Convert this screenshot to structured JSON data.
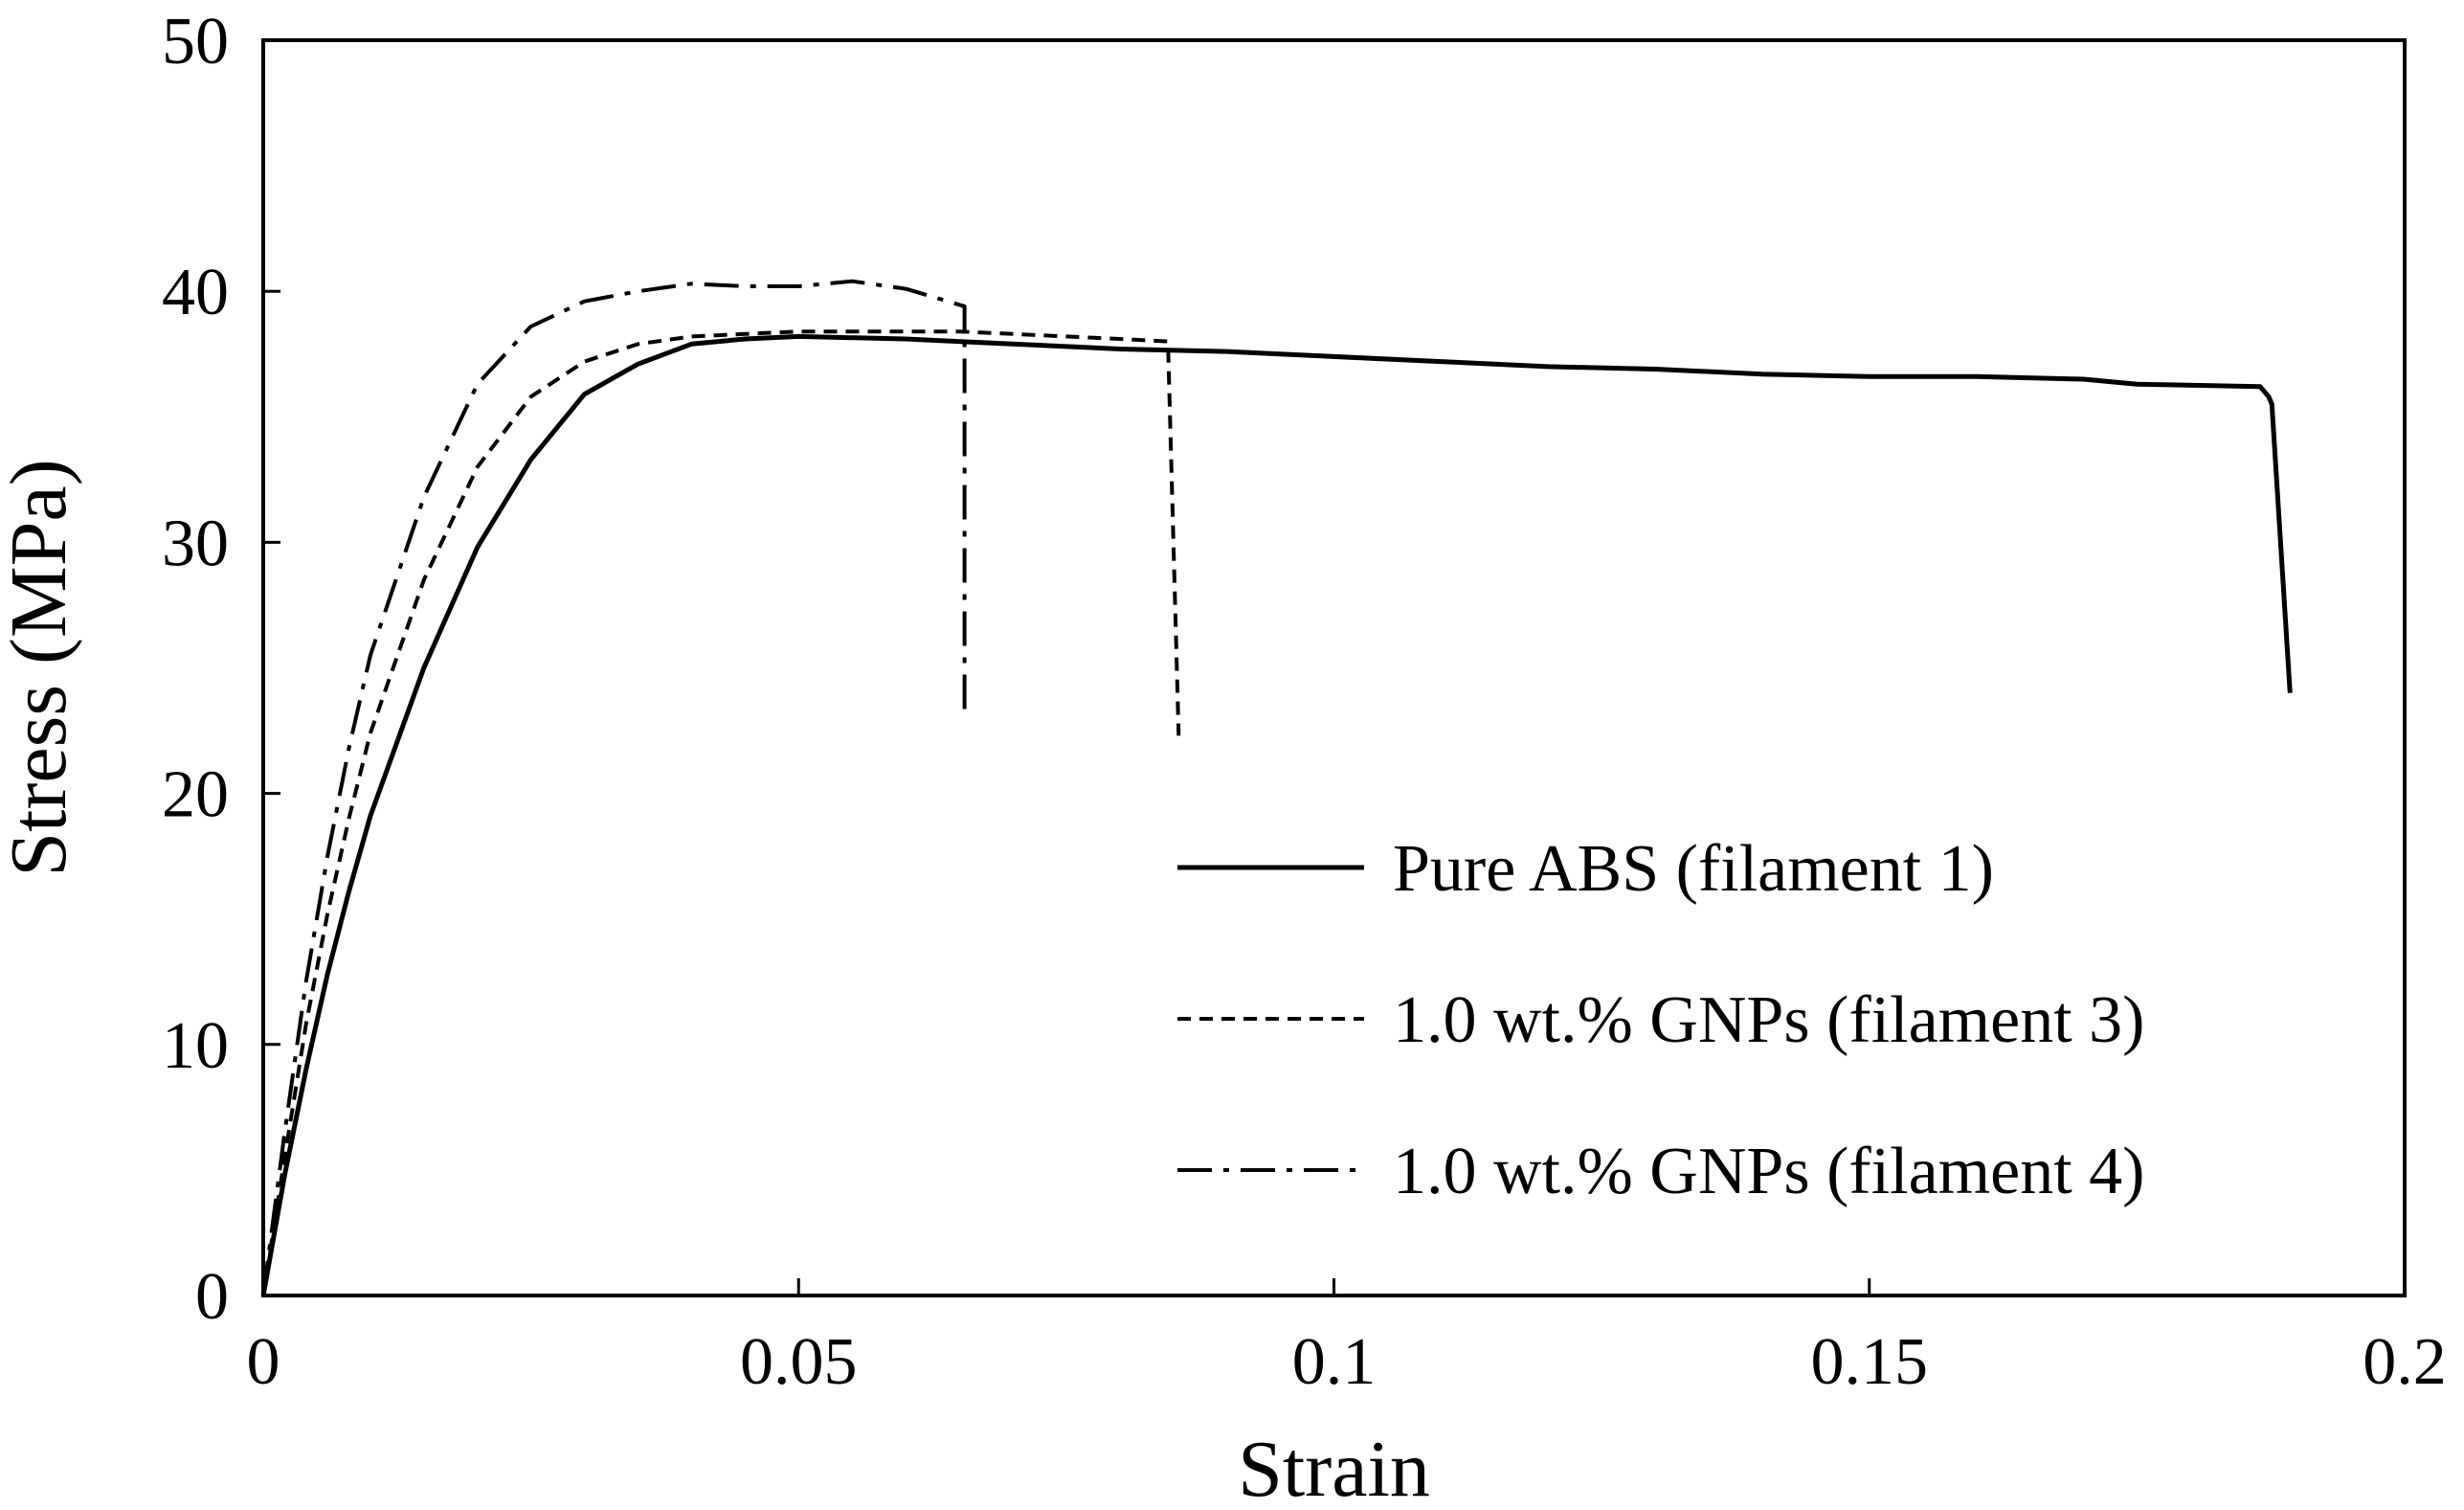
{
  "chart_data": {
    "type": "line",
    "title": "",
    "xlabel": "Strain",
    "ylabel": "Stress (MPa)",
    "xlim": [
      0,
      0.2
    ],
    "ylim": [
      0,
      50
    ],
    "xticks": [
      0,
      0.05,
      0.1,
      0.15,
      0.2
    ],
    "xtick_labels": [
      "0",
      "0.05",
      "0.1",
      "0.15",
      "0.2"
    ],
    "yticks": [
      0,
      10,
      20,
      30,
      40,
      50
    ],
    "ytick_labels": [
      "0",
      "10",
      "20",
      "30",
      "40",
      "50"
    ],
    "grid": false,
    "legend_position": "center-right",
    "line_color": "#000000",
    "series": [
      {
        "name": "Pure ABS (filament 1)",
        "style": "solid",
        "points": [
          [
            0,
            0
          ],
          [
            0.002,
            4.8
          ],
          [
            0.004,
            9
          ],
          [
            0.006,
            12.8
          ],
          [
            0.008,
            16.1
          ],
          [
            0.01,
            19.1
          ],
          [
            0.015,
            25
          ],
          [
            0.02,
            29.8
          ],
          [
            0.025,
            33.3
          ],
          [
            0.03,
            35.9
          ],
          [
            0.035,
            37.1
          ],
          [
            0.04,
            37.9
          ],
          [
            0.045,
            38.1
          ],
          [
            0.05,
            38.2
          ],
          [
            0.06,
            38.1
          ],
          [
            0.07,
            37.9
          ],
          [
            0.08,
            37.7
          ],
          [
            0.09,
            37.6
          ],
          [
            0.1,
            37.4
          ],
          [
            0.11,
            37.2
          ],
          [
            0.12,
            37.0
          ],
          [
            0.13,
            36.9
          ],
          [
            0.14,
            36.7
          ],
          [
            0.15,
            36.6
          ],
          [
            0.16,
            36.6
          ],
          [
            0.17,
            36.5
          ],
          [
            0.175,
            36.3
          ],
          [
            0.1865,
            36.2
          ],
          [
            0.1873,
            35.8
          ],
          [
            0.1876,
            35.5
          ],
          [
            0.1893,
            24
          ]
        ]
      },
      {
        "name": "1.0 wt.% GNPs (filament 3)",
        "style": "dashed",
        "points": [
          [
            0,
            0
          ],
          [
            0.002,
            5.5
          ],
          [
            0.004,
            10.8
          ],
          [
            0.006,
            15.2
          ],
          [
            0.008,
            19
          ],
          [
            0.01,
            22.4
          ],
          [
            0.015,
            28.5
          ],
          [
            0.02,
            33
          ],
          [
            0.025,
            35.8
          ],
          [
            0.03,
            37.2
          ],
          [
            0.035,
            37.9
          ],
          [
            0.04,
            38.2
          ],
          [
            0.045,
            38.3
          ],
          [
            0.05,
            38.4
          ],
          [
            0.055,
            38.4
          ],
          [
            0.06,
            38.4
          ],
          [
            0.065,
            38.4
          ],
          [
            0.07,
            38.3
          ],
          [
            0.075,
            38.2
          ],
          [
            0.08,
            38.1
          ],
          [
            0.0845,
            38
          ],
          [
            0.0855,
            22.3
          ]
        ]
      },
      {
        "name": "1.0 wt.% GNPs (filament 4)",
        "style": "dashdot",
        "points": [
          [
            0,
            0
          ],
          [
            0.002,
            6.5
          ],
          [
            0.004,
            12.5
          ],
          [
            0.006,
            17.5
          ],
          [
            0.008,
            21.8
          ],
          [
            0.01,
            25.5
          ],
          [
            0.015,
            31.8
          ],
          [
            0.02,
            36.3
          ],
          [
            0.025,
            38.6
          ],
          [
            0.03,
            39.6
          ],
          [
            0.035,
            40
          ],
          [
            0.04,
            40.3
          ],
          [
            0.045,
            40.2
          ],
          [
            0.05,
            40.2
          ],
          [
            0.055,
            40.4
          ],
          [
            0.06,
            40.1
          ],
          [
            0.0655,
            39.4
          ],
          [
            0.0655,
            23
          ]
        ]
      }
    ]
  }
}
